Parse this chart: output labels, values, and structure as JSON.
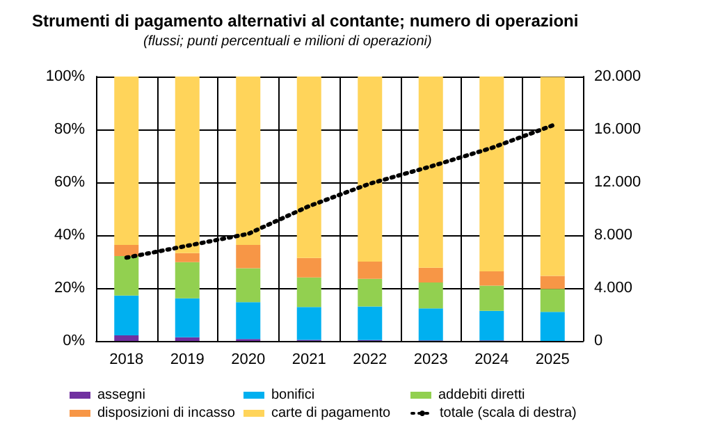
{
  "chart_data": {
    "type": "bar",
    "stacked": true,
    "title": "Strumenti di pagamento alternativi al contante; numero di operazioni",
    "subtitle": "(flussi; punti percentuali e milioni di operazioni)",
    "categories": [
      "2018",
      "2019",
      "2020",
      "2021",
      "2022",
      "2023",
      "2024",
      "2025"
    ],
    "series": [
      {
        "name": "assegni",
        "color": "#7030a0",
        "values": [
          2.1,
          1.4,
          0.7,
          0.4,
          0.3,
          0.2,
          0.2,
          null
        ]
      },
      {
        "name": "bonifici",
        "color": "#00b0f0",
        "values": [
          15.1,
          14.7,
          14.0,
          12.4,
          12.7,
          12.1,
          11.2,
          11.0
        ]
      },
      {
        "name": "addebiti diretti",
        "color": "#92d050",
        "values": [
          14.9,
          13.7,
          12.8,
          11.2,
          10.5,
          9.8,
          9.5,
          8.7
        ]
      },
      {
        "name": "disposizioni di incasso",
        "color": "#f79646",
        "values": [
          4.2,
          3.4,
          8.8,
          7.4,
          6.5,
          5.6,
          5.4,
          4.9
        ]
      },
      {
        "name": "carte di pagamento",
        "color": "#ffd45a",
        "values": [
          63.7,
          66.8,
          63.7,
          68.6,
          70.0,
          72.3,
          73.7,
          75.3
        ]
      },
      {
        "name": "totale (scala di destra)",
        "type": "line",
        "axis": "y2",
        "color": "#000000",
        "line_style": "dotted",
        "marker": "none",
        "values": [
          6300,
          7200,
          8100,
          10200,
          11900,
          13200,
          14600,
          16300
        ]
      }
    ],
    "ylim": [
      0,
      100
    ],
    "yticks": [
      {
        "value": 0,
        "label": "0%"
      },
      {
        "value": 20,
        "label": "20%"
      },
      {
        "value": 40,
        "label": "40%"
      },
      {
        "value": 60,
        "label": "60%"
      },
      {
        "value": 80,
        "label": "80%"
      },
      {
        "value": 100,
        "label": "100%"
      }
    ],
    "y2lim": [
      0,
      20000
    ],
    "y2ticks": [
      0,
      {
        "value": 4000,
        "label": "4.000"
      },
      {
        "value": 8000,
        "label": "8.000"
      },
      {
        "value": 12000,
        "label": "12.000"
      },
      {
        "value": 16000,
        "label": "16.000"
      },
      {
        "value": 20000,
        "label": "20.000"
      }
    ],
    "grid": true,
    "legend": "bottom"
  }
}
